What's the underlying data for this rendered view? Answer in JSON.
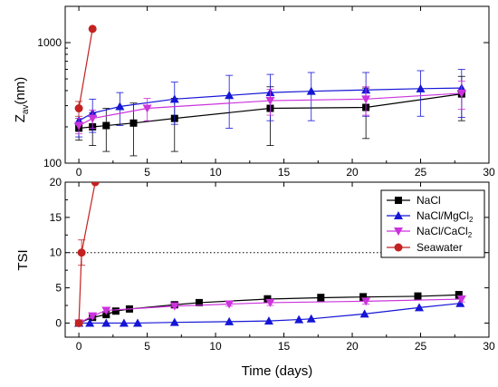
{
  "chart_data": [
    {
      "type": "line",
      "panel": "top",
      "ylabel_main": "Z",
      "ylabel_sub": "av",
      "ylabel_unit": "(nm)",
      "yscale": "log",
      "xlim": [
        -1,
        30
      ],
      "ylim": [
        100,
        2000
      ],
      "xticks": [
        "0",
        "5",
        "10",
        "15",
        "20",
        "25",
        "30"
      ],
      "yticks": [
        "100",
        "1000"
      ],
      "series": [
        {
          "name": "NaCl",
          "color": "#000000",
          "marker": "square",
          "x": [
            0,
            1,
            2,
            4,
            7,
            14,
            21,
            28
          ],
          "y": [
            195,
            200,
            205,
            215,
            235,
            285,
            290,
            375
          ],
          "err": [
            40,
            60,
            80,
            100,
            110,
            145,
            130,
            150
          ]
        },
        {
          "name": "NaCl/MgCl2",
          "color": "#1515d6",
          "marker": "triangle-up",
          "x": [
            0,
            1,
            3,
            7,
            11,
            14,
            17,
            21,
            25,
            28
          ],
          "y": [
            225,
            260,
            295,
            340,
            365,
            385,
            395,
            405,
            415,
            420
          ],
          "err": [
            60,
            80,
            90,
            130,
            170,
            160,
            170,
            160,
            170,
            180
          ]
        },
        {
          "name": "NaCl/CaCl2",
          "color": "#cc33dd",
          "marker": "triangle-down",
          "x": [
            0,
            1,
            5,
            14,
            21,
            28
          ],
          "y": [
            205,
            235,
            285,
            330,
            340,
            380
          ],
          "err": [
            30,
            40,
            60,
            80,
            90,
            100
          ]
        },
        {
          "name": "Seawater",
          "color": "#c42121",
          "marker": "circle",
          "x": [
            0,
            1
          ],
          "y": [
            285,
            1300
          ],
          "err": [
            40,
            0
          ]
        }
      ]
    },
    {
      "type": "line",
      "panel": "bottom",
      "xlabel": "Time (days)",
      "ylabel": "TSI",
      "xlim": [
        -1,
        30
      ],
      "ylim": [
        -2,
        20
      ],
      "xticks": [
        "0",
        "5",
        "10",
        "15",
        "20",
        "25",
        "30"
      ],
      "yticks": [
        "0",
        "5",
        "10",
        "15",
        "20"
      ],
      "reference_line": {
        "y": 10,
        "style": "dotted"
      },
      "legend": {
        "position": "top-right",
        "entries": [
          {
            "main": "NaCl",
            "sub": ""
          },
          {
            "main": "NaCl/MgCl",
            "sub": "2"
          },
          {
            "main": "NaCl/CaCl",
            "sub": "2"
          },
          {
            "main": "Seawater",
            "sub": ""
          }
        ]
      },
      "series": [
        {
          "name": "NaCl",
          "color": "#000000",
          "marker": "square",
          "x": [
            0,
            1,
            2,
            2.7,
            3.7,
            7,
            8.8,
            13.8,
            17.7,
            20.8,
            24.8,
            27.8
          ],
          "y": [
            0,
            0.8,
            1.2,
            1.7,
            2.0,
            2.6,
            2.9,
            3.4,
            3.6,
            3.7,
            3.8,
            4.0
          ],
          "err": [
            0,
            0.3,
            0.3,
            0.3,
            0.3,
            0.4,
            0.4,
            0.5,
            0.5,
            0.5,
            0.5,
            0.5
          ]
        },
        {
          "name": "NaCl/MgCl2",
          "color": "#1515d6",
          "marker": "triangle-up",
          "x": [
            0,
            0.8,
            2,
            3.3,
            4.3,
            7,
            11,
            13.9,
            16.1,
            17,
            20.9,
            24.9,
            27.9
          ],
          "y": [
            0,
            0,
            0,
            0,
            0,
            0.1,
            0.2,
            0.3,
            0.5,
            0.6,
            1.3,
            2.2,
            2.8
          ],
          "err": [
            0,
            0,
            0,
            0,
            0,
            0,
            0,
            0,
            0,
            0,
            0,
            0,
            0
          ]
        },
        {
          "name": "NaCl/CaCl2",
          "color": "#cc33dd",
          "marker": "triangle-down",
          "x": [
            0,
            1,
            2,
            7,
            11,
            14,
            21,
            28
          ],
          "y": [
            0,
            1.0,
            1.8,
            2.4,
            2.7,
            2.9,
            3.1,
            3.4
          ],
          "err": [
            0,
            0.3,
            0.3,
            0.3,
            0.3,
            0.4,
            0.4,
            0.4
          ]
        },
        {
          "name": "Seawater",
          "color": "#c42121",
          "marker": "circle",
          "x": [
            0,
            0.2,
            1.2
          ],
          "y": [
            0,
            10,
            20
          ],
          "err": [
            0,
            1.8,
            0
          ]
        }
      ]
    }
  ]
}
